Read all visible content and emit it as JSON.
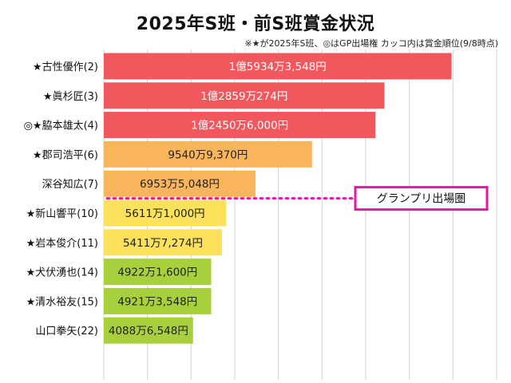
{
  "chart_data": {
    "type": "bar",
    "orientation": "horizontal",
    "title": "2025年S班・前S班賞金状況",
    "subtitle": "※★が2025年S班、◎はGP出場権 カッコ内は賞金順位(9/8時点)",
    "categories": [
      "★古性優作(2)",
      "★眞杉匠(3)",
      "◎★脇本雄太(4)",
      "★郡司浩平(6)",
      "深谷知広(7)",
      "★新山響平(10)",
      "★岩本俊介(11)",
      "★犬伏湧也(14)",
      "★清水裕友(15)",
      "山口拳矢(22)"
    ],
    "values": [
      159343548,
      128590274,
      124506000,
      95409370,
      69535048,
      56111000,
      54117274,
      49221600,
      49213548,
      40886548
    ],
    "value_labels": [
      "1億5934万3,548円",
      "1億2859万274円",
      "1億2450万6,000円",
      "9540万9,370円",
      "6953万5,048円",
      "5611万1,000円",
      "5411万7,274円",
      "4922万1,600円",
      "4921万3,548円",
      "4088万6,548円"
    ],
    "xlim": [
      0,
      180000000
    ],
    "grid": true,
    "cutoff_after_index": 4,
    "cutoff_label": "グランプリ出場圏",
    "colors": {
      "red": "#f0585e",
      "orange": "#f9b55c",
      "yellow": "#fbe15c",
      "green": "#a8cf3c",
      "cutoff": "#e617a8",
      "grid": "#d4d4d4"
    },
    "bar_color_groups": [
      "red",
      "red",
      "red",
      "orange",
      "orange",
      "yellow",
      "yellow",
      "green",
      "green",
      "green"
    ]
  }
}
